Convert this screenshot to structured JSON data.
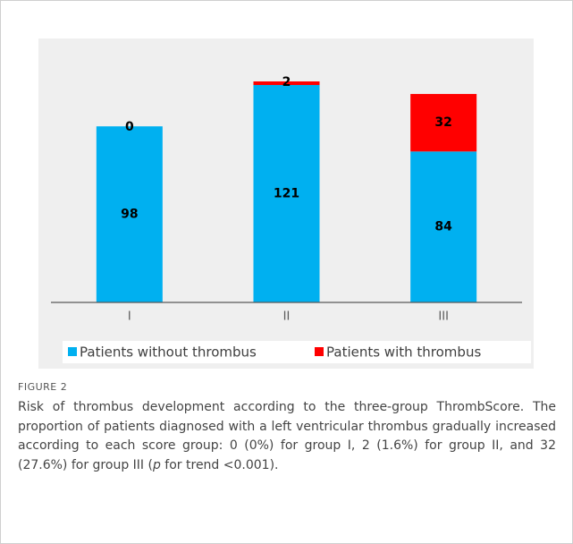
{
  "chart_data": {
    "type": "stacked_bar",
    "categories": [
      "I",
      "II",
      "III"
    ],
    "series": [
      {
        "name": "Patients without thrombus",
        "color": "#00b0f0",
        "values": [
          98,
          121,
          84
        ]
      },
      {
        "name": "Patients with thrombus",
        "color": "#ff0000",
        "values": [
          0,
          2,
          32
        ]
      }
    ],
    "legend": "bottom"
  },
  "caption": {
    "label": "FIGURE 2",
    "text_before": "Risk of thrombus development according to the three-group ThrombScore. The proportion of patients diagnosed with a left ventricular thrombus gradually increased according to each score group: 0 (0%) for group I, 2 (1.6%) for group II, and 32 (27.6%) for group III (",
    "italic": "p",
    "text_after": " for trend <0.001)."
  }
}
